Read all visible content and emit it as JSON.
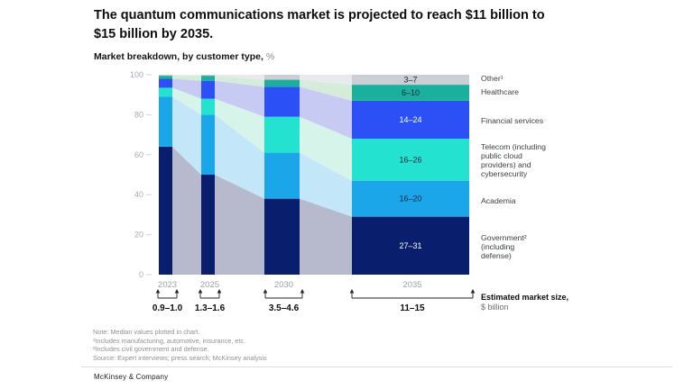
{
  "header": {
    "title": "The quantum communications market is projected to reach $11 billion to\n$15 billion by 2035.",
    "subtitle_bold": "Market breakdown, by customer type,",
    "subtitle_unit": "%"
  },
  "chart_data": {
    "type": "area",
    "variant": "stacked-bar-with-flow-bands",
    "title": "Market breakdown, by customer type, %",
    "categories": [
      "2023",
      "2025",
      "2030",
      "2035"
    ],
    "ylim": [
      0,
      100
    ],
    "yticks": [
      0,
      20,
      40,
      60,
      80,
      100
    ],
    "grid": false,
    "legend_position": "right",
    "plot_note": "Median values plotted in chart",
    "series": [
      {
        "key": "government",
        "name": "Government² (including defense)",
        "color": "#0a1e6e",
        "tint": "#b7bacd",
        "values": [
          64,
          50,
          38,
          29
        ],
        "label": "27–31",
        "label_light": true
      },
      {
        "key": "academia",
        "name": "Academia",
        "color": "#1aa6e8",
        "tint": "#c3e7f8",
        "values": [
          25,
          30,
          23,
          18
        ],
        "label": "16–20",
        "label_light": false
      },
      {
        "key": "telecom",
        "name": "Telecom (including public cloud providers) and cybersecurity",
        "color": "#23e2d0",
        "tint": "#d6f4ea",
        "values": [
          4.5,
          8,
          18,
          21
        ],
        "label": "16–26",
        "label_light": false
      },
      {
        "key": "financial-services",
        "name": "Financial services",
        "color": "#2b50f5",
        "tint": "#c7cbf3",
        "values": [
          4.5,
          9,
          15,
          19
        ],
        "label": "14–24",
        "label_light": true
      },
      {
        "key": "healthcare",
        "name": "Healthcare",
        "color": "#1ab09d",
        "tint": "#d6ecdb",
        "values": [
          1.5,
          2.5,
          3.5,
          8
        ],
        "label": "6–10",
        "label_light": false
      },
      {
        "key": "other",
        "name": "Other¹",
        "color": "#cbced3",
        "tint": "#e8eaee",
        "values": [
          0.5,
          0.5,
          2.5,
          5
        ],
        "label": "3–7",
        "label_light": false
      }
    ],
    "legend": [
      "Other¹",
      "Healthcare",
      "Financial services",
      "Telecom (including\npublic cloud\nproviders) and\ncybersecurity",
      "Academia",
      "Government²\n(including\ndefense)"
    ],
    "market_size": {
      "values": [
        "0.9–1.0",
        "1.3–1.6",
        "3.5–4.6",
        "11–15"
      ],
      "caption_bold": "Estimated market size,",
      "caption_unit": "$ billion"
    }
  },
  "notes": [
    "Note: Median values plotted in chart.",
    "¹Includes manufacturing, automotive, insurance, etc.",
    "²Includes civil government and defense.",
    "Source: Expert interviews; press search; McKinsey analysis"
  ],
  "footer": {
    "brand": "McKinsey & Company"
  }
}
